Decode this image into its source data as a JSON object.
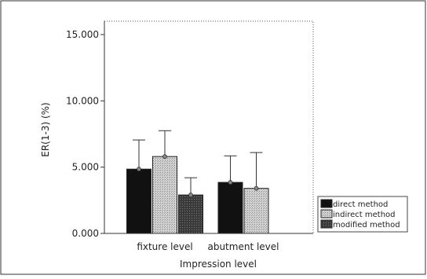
{
  "chart_data": {
    "type": "bar",
    "title": "",
    "xlabel": "Impression level",
    "ylabel": "ER(1-3) (%)",
    "ylim": [
      0,
      15
    ],
    "yticks": [
      0,
      5,
      10,
      15
    ],
    "ytick_labels": [
      "0.000",
      "5.000",
      "10.000",
      "15.000"
    ],
    "grid": false,
    "legend_position": "bottom-right",
    "categories": [
      "fixture level",
      "abutment level"
    ],
    "series": [
      {
        "name": "direct method",
        "color": "#111111",
        "values": [
          4.85,
          3.85
        ],
        "errors": [
          2.2,
          2.0
        ]
      },
      {
        "name": "indirect method",
        "color": "#c4c4c4",
        "values": [
          5.8,
          3.4
        ],
        "errors": [
          1.95,
          2.7
        ]
      },
      {
        "name": "modified method",
        "color": "#3c3c3c",
        "values": [
          2.9,
          null
        ],
        "errors": [
          1.3,
          null
        ]
      }
    ]
  }
}
